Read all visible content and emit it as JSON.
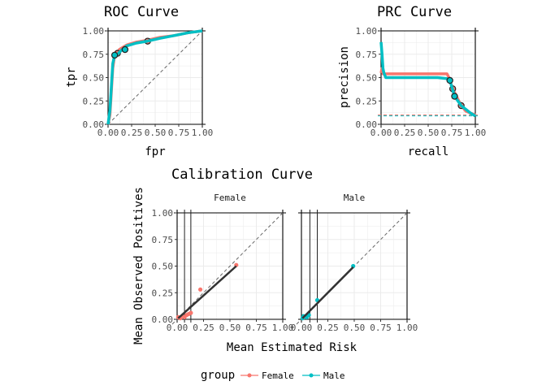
{
  "colors": {
    "Female": "#F8766D",
    "Male": "#00BFC4",
    "grid": "#ebebeb",
    "fit": "#333333"
  },
  "legend": {
    "title": "group",
    "items": [
      "Female",
      "Male"
    ],
    "placement": "bottom"
  },
  "chart_data": [
    {
      "id": "roc",
      "type": "line",
      "title": "ROC Curve",
      "xlabel": "fpr",
      "ylabel": "tpr",
      "xlim": [
        0,
        1
      ],
      "ylim": [
        0,
        1
      ],
      "xticks": [
        "0.00",
        "0.25",
        "0.50",
        "0.75",
        "1.00"
      ],
      "yticks": [
        "0.00",
        "0.25",
        "0.50",
        "0.75",
        "1.00"
      ],
      "reference_line": "diagonal",
      "series": [
        {
          "name": "Female",
          "x": [
            0,
            0.02,
            0.05,
            0.07,
            0.09,
            0.12,
            0.15,
            0.2,
            0.3,
            0.42,
            0.55,
            0.7,
            0.85,
            1.0
          ],
          "y": [
            0,
            0.1,
            0.6,
            0.74,
            0.76,
            0.8,
            0.82,
            0.85,
            0.88,
            0.9,
            0.93,
            0.95,
            0.98,
            1.0
          ],
          "points": [
            [
              0.1,
              0.76
            ],
            [
              0.42,
              0.89
            ]
          ]
        },
        {
          "name": "Male",
          "x": [
            0,
            0.02,
            0.05,
            0.07,
            0.1,
            0.15,
            0.2,
            0.3,
            0.42,
            0.55,
            0.7,
            0.85,
            1.0
          ],
          "y": [
            0,
            0.15,
            0.65,
            0.74,
            0.75,
            0.8,
            0.84,
            0.87,
            0.89,
            0.92,
            0.95,
            0.98,
            1.0
          ],
          "points": [
            [
              0.07,
              0.74
            ],
            [
              0.18,
              0.8
            ]
          ]
        }
      ]
    },
    {
      "id": "prc",
      "type": "line",
      "title": "PRC Curve",
      "xlabel": "recall",
      "ylabel": "precision",
      "xlim": [
        0,
        1
      ],
      "ylim": [
        0,
        1
      ],
      "xticks": [
        "0.00",
        "0.25",
        "0.50",
        "0.75",
        "1.00"
      ],
      "yticks": [
        "0.00",
        "0.25",
        "0.50",
        "0.75",
        "1.00"
      ],
      "baselines": [
        {
          "name": "Female",
          "y": 0.1
        },
        {
          "name": "Male",
          "y": 0.09
        }
      ],
      "series": [
        {
          "name": "Female",
          "x": [
            0,
            0.01,
            0.02,
            0.05,
            0.1,
            0.3,
            0.5,
            0.7,
            0.72,
            0.76,
            0.8,
            0.85,
            0.9,
            1.0
          ],
          "y": [
            0.55,
            0.6,
            0.54,
            0.54,
            0.54,
            0.54,
            0.54,
            0.54,
            0.5,
            0.38,
            0.3,
            0.2,
            0.14,
            0.1
          ],
          "points": [
            [
              0.76,
              0.38
            ],
            [
              0.85,
              0.2
            ]
          ]
        },
        {
          "name": "Male",
          "x": [
            0,
            0.01,
            0.02,
            0.03,
            0.05,
            0.08,
            0.1,
            0.2,
            0.4,
            0.6,
            0.7,
            0.73,
            0.78,
            0.85,
            0.95,
            1.0
          ],
          "y": [
            0.88,
            0.75,
            0.6,
            0.55,
            0.5,
            0.5,
            0.5,
            0.5,
            0.5,
            0.5,
            0.49,
            0.47,
            0.3,
            0.2,
            0.12,
            0.09
          ],
          "points": [
            [
              0.73,
              0.47
            ],
            [
              0.78,
              0.3
            ]
          ]
        }
      ]
    },
    {
      "id": "calibration",
      "type": "scatter",
      "title": "Calibration Curve",
      "xlabel": "Mean Estimated Risk",
      "ylabel": "Mean Observed Positives",
      "xlim": [
        0,
        1
      ],
      "ylim": [
        0,
        1
      ],
      "xticks": [
        "0.00",
        "0.25",
        "0.50",
        "0.75",
        "1.00"
      ],
      "yticks": [
        "0.00",
        "0.25",
        "0.50",
        "0.75",
        "1.00"
      ],
      "reference_line": "diagonal",
      "facets": [
        {
          "name": "Female",
          "x": [
            0.01,
            0.03,
            0.05,
            0.07,
            0.09,
            0.11,
            0.13,
            0.22,
            0.56
          ],
          "y": [
            0.02,
            0.01,
            0.03,
            0.02,
            0.04,
            0.05,
            0.06,
            0.28,
            0.51
          ],
          "fit": [
            [
              0.01,
              0.01
            ],
            [
              0.56,
              0.5
            ]
          ],
          "vlines": [
            0.07,
            0.13
          ]
        },
        {
          "name": "Male",
          "x": [
            0.01,
            0.02,
            0.05,
            0.07,
            0.15,
            0.49
          ],
          "y": [
            0.01,
            0.03,
            0.02,
            0.04,
            0.18,
            0.5
          ],
          "fit": [
            [
              0.01,
              0.01
            ],
            [
              0.49,
              0.49
            ]
          ],
          "vlines": [
            0.08,
            0.15
          ]
        }
      ]
    }
  ]
}
